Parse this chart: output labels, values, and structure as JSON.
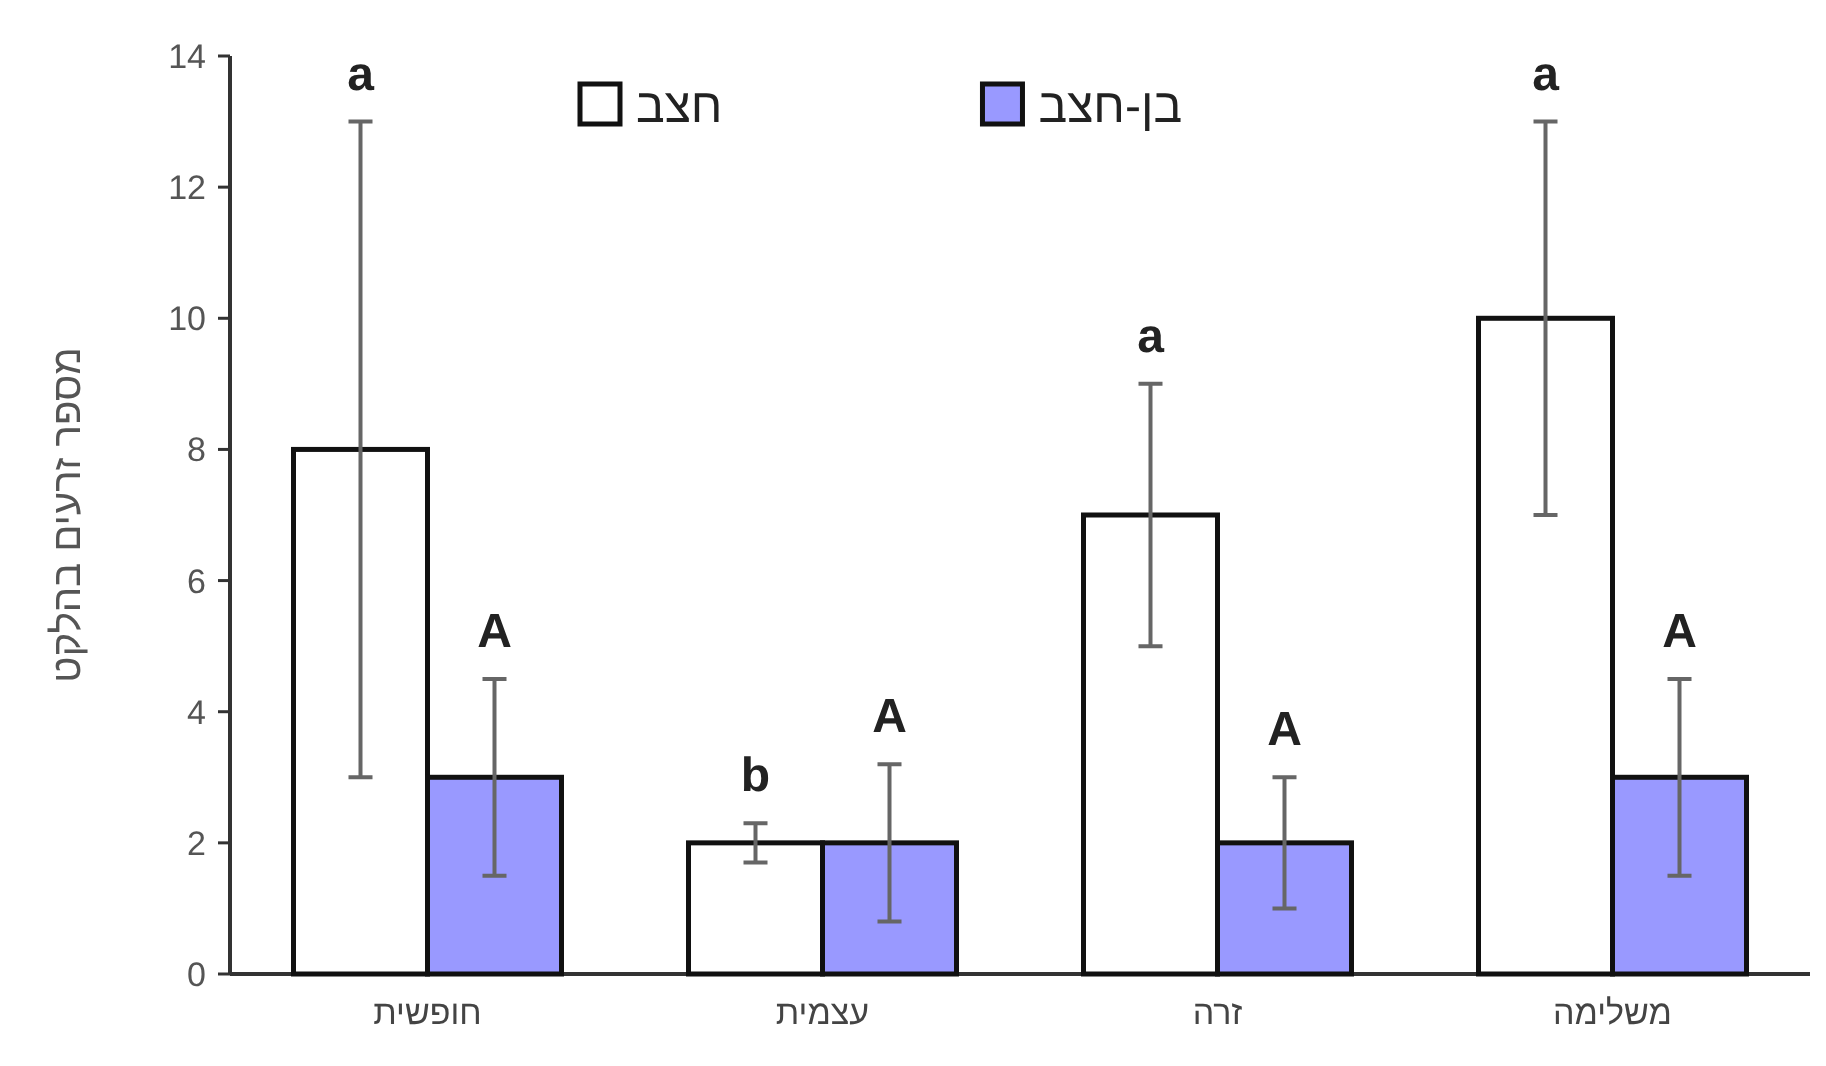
{
  "chart_data": {
    "type": "bar",
    "ylabel": "מספר זרעים בהלקט",
    "categories": [
      "חופשית",
      "עצמית",
      "זרה",
      "משלימה"
    ],
    "series": [
      {
        "name": "חצב",
        "color": "#ffffff",
        "values": [
          8,
          2,
          7,
          10
        ],
        "errors": [
          [
            3,
            13
          ],
          [
            1.7,
            2.3
          ],
          [
            5,
            9
          ],
          [
            7,
            13
          ]
        ]
      },
      {
        "name": "בן-חצב",
        "color": "#9999ff",
        "values": [
          3,
          2,
          2,
          3
        ],
        "errors": [
          [
            1.5,
            4.5
          ],
          [
            0.8,
            3.2
          ],
          [
            1,
            3
          ],
          [
            1.5,
            4.5
          ]
        ]
      }
    ],
    "ylim": [
      0,
      14
    ],
    "yticks": [
      0,
      2,
      4,
      6,
      8,
      10,
      12,
      14
    ],
    "grid": false,
    "legend": "top",
    "annotations": [
      "a",
      "b",
      "a",
      "a",
      "A",
      "A",
      "A",
      "A"
    ]
  }
}
